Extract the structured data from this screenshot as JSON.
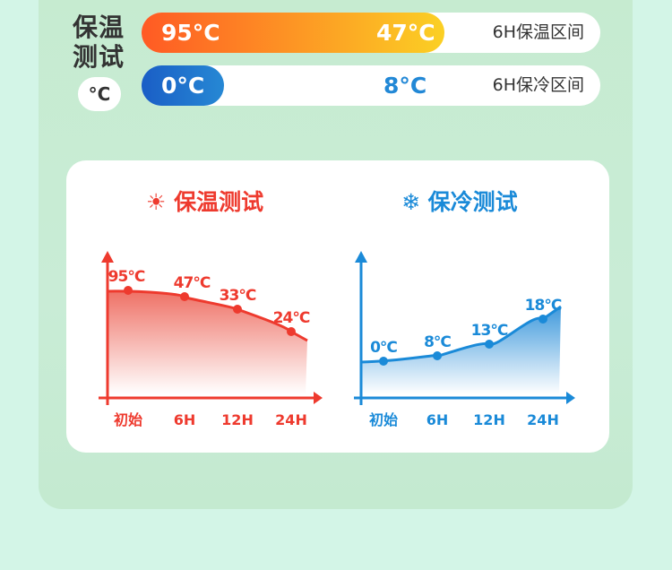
{
  "side": {
    "title": "保温测试",
    "unit": "°C"
  },
  "bars": [
    {
      "start": "95°C",
      "end": "47°C",
      "label": "6H保温区间",
      "fill_fraction": 0.66,
      "colors": [
        "#ff5a24",
        "#fbd024"
      ]
    },
    {
      "start": "0°C",
      "end": "8°C",
      "label": "6H保冷区间",
      "fill_fraction": 0.18,
      "colors": [
        "#1a5ec6",
        "#2688d4"
      ]
    }
  ],
  "chart_data": [
    {
      "type": "area",
      "title": "保温测试",
      "icon": "sun-icon",
      "color": "#ee3a2e",
      "categories": [
        "初始",
        "6H",
        "12H",
        "24H"
      ],
      "values": [
        95,
        47,
        33,
        24
      ],
      "labels": [
        "95°C",
        "47°C",
        "33°C",
        "24°C"
      ],
      "trend": "decreasing"
    },
    {
      "type": "area",
      "title": "保冷测试",
      "icon": "snowflake-icon",
      "color": "#1a8ad8",
      "categories": [
        "初始",
        "6H",
        "12H",
        "24H"
      ],
      "values": [
        0,
        8,
        13,
        18
      ],
      "labels": [
        "0°C",
        "8°C",
        "13°C",
        "18°C"
      ],
      "trend": "increasing"
    }
  ]
}
